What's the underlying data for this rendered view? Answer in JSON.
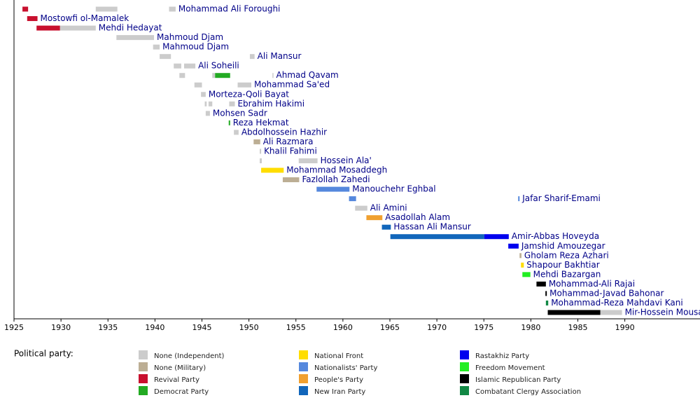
{
  "chart_data": {
    "type": "timeline",
    "xlim": [
      1925,
      1998
    ],
    "xticks": [
      1925,
      1930,
      1935,
      1940,
      1945,
      1950,
      1955,
      1960,
      1965,
      1970,
      1975,
      1980,
      1985,
      1990
    ],
    "legend_title": "Political party:",
    "series": [
      {
        "name": "None (Independent)",
        "color": "#cccccc"
      },
      {
        "name": "None (Military)",
        "color": "#bcae94"
      },
      {
        "name": "Revival Party",
        "color": "#c8102e"
      },
      {
        "name": "Democrat Party",
        "color": "#22aa22"
      },
      {
        "name": "National Front",
        "color": "#ffdd00"
      },
      {
        "name": "Nationalists' Party",
        "color": "#5588dd"
      },
      {
        "name": "People's Party",
        "color": "#f0a030"
      },
      {
        "name": "New Iran Party",
        "color": "#1166bb"
      },
      {
        "name": "Rastakhiz Party",
        "color": "#0000ee"
      },
      {
        "name": "Freedom Movement",
        "color": "#22ee22"
      },
      {
        "name": "Islamic Republican Party",
        "color": "#000000"
      },
      {
        "name": "Combatant Clergy Association",
        "color": "#118844"
      }
    ],
    "rows": [
      {
        "label": "Mohammad Ali Foroughi",
        "segments": [
          {
            "start": 1925.9,
            "end": 1926.5,
            "color": "#c8102e"
          },
          {
            "start": 1933.7,
            "end": 1936.0,
            "color": "#cccccc"
          },
          {
            "start": 1941.5,
            "end": 1942.2,
            "color": "#cccccc"
          }
        ]
      },
      {
        "label": "Mostowfi ol-Mamalek",
        "segments": [
          {
            "start": 1926.4,
            "end": 1927.5,
            "color": "#c8102e"
          }
        ]
      },
      {
        "label": "Mehdi Hedayat",
        "segments": [
          {
            "start": 1927.4,
            "end": 1929.9,
            "color": "#c8102e"
          },
          {
            "start": 1929.9,
            "end": 1933.7,
            "color": "#cccccc"
          }
        ]
      },
      {
        "label": "Mahmoud Djam",
        "segments": [
          {
            "start": 1935.9,
            "end": 1939.9,
            "color": "#cccccc"
          }
        ]
      },
      {
        "label": "Mahmoud Djam",
        "segments": [
          {
            "start": 1939.8,
            "end": 1940.5,
            "color": "#cccccc"
          }
        ]
      },
      {
        "label": "Ali Mansur",
        "segments": [
          {
            "start": 1940.5,
            "end": 1941.7,
            "color": "#cccccc"
          },
          {
            "start": 1950.1,
            "end": 1950.6,
            "color": "#cccccc"
          }
        ]
      },
      {
        "label": "Ali Soheili",
        "segments": [
          {
            "start": 1942.0,
            "end": 1942.8,
            "color": "#cccccc"
          },
          {
            "start": 1943.1,
            "end": 1944.3,
            "color": "#cccccc"
          }
        ]
      },
      {
        "label": "Ahmad Qavam",
        "segments": [
          {
            "start": 1942.6,
            "end": 1943.2,
            "color": "#cccccc"
          },
          {
            "start": 1946.1,
            "end": 1946.4,
            "color": "#cccccc"
          },
          {
            "start": 1946.4,
            "end": 1948.0,
            "color": "#22aa22"
          },
          {
            "start": 1952.5,
            "end": 1952.6,
            "color": "#cccccc"
          }
        ]
      },
      {
        "label": "Mohammad Sa'ed",
        "segments": [
          {
            "start": 1944.2,
            "end": 1945.0,
            "color": "#cccccc"
          },
          {
            "start": 1948.8,
            "end": 1950.25,
            "color": "#cccccc"
          }
        ]
      },
      {
        "label": "Morteza-Qoli Bayat",
        "segments": [
          {
            "start": 1944.9,
            "end": 1945.4,
            "color": "#cccccc"
          }
        ]
      },
      {
        "label": "Ebrahim Hakimi",
        "segments": [
          {
            "start": 1945.3,
            "end": 1945.5,
            "color": "#cccccc"
          },
          {
            "start": 1945.7,
            "end": 1946.1,
            "color": "#cccccc"
          },
          {
            "start": 1947.9,
            "end": 1948.5,
            "color": "#cccccc"
          }
        ]
      },
      {
        "label": "Mohsen Sadr",
        "segments": [
          {
            "start": 1945.4,
            "end": 1945.85,
            "color": "#cccccc"
          }
        ]
      },
      {
        "label": "Reza Hekmat",
        "segments": [
          {
            "start": 1947.85,
            "end": 1948.0,
            "color": "#22aa22"
          }
        ]
      },
      {
        "label": "Abdolhossein Hazhir",
        "segments": [
          {
            "start": 1948.4,
            "end": 1948.9,
            "color": "#cccccc"
          }
        ]
      },
      {
        "label": "Ali Razmara",
        "segments": [
          {
            "start": 1950.5,
            "end": 1951.2,
            "color": "#bcae94"
          }
        ]
      },
      {
        "label": "Khalil Fahimi",
        "segments": [
          {
            "start": 1951.15,
            "end": 1951.3,
            "color": "#cccccc"
          }
        ]
      },
      {
        "label": "Hossein Ala'",
        "segments": [
          {
            "start": 1951.15,
            "end": 1951.37,
            "color": "#cccccc"
          },
          {
            "start": 1955.3,
            "end": 1957.3,
            "color": "#cccccc"
          }
        ]
      },
      {
        "label": "Mohammad Mosaddegh",
        "segments": [
          {
            "start": 1951.3,
            "end": 1953.7,
            "color": "#ffdd00"
          }
        ]
      },
      {
        "label": "Fazlollah Zahedi",
        "segments": [
          {
            "start": 1953.6,
            "end": 1955.35,
            "color": "#bcae94"
          }
        ]
      },
      {
        "label": "Manouchehr Eghbal",
        "segments": [
          {
            "start": 1957.2,
            "end": 1960.7,
            "color": "#5588dd"
          }
        ]
      },
      {
        "label": "Jafar Sharif-Emami",
        "segments": [
          {
            "start": 1960.65,
            "end": 1961.4,
            "color": "#5588dd"
          },
          {
            "start": 1978.65,
            "end": 1978.8,
            "color": "#5588dd"
          }
        ]
      },
      {
        "label": "Ali Amini",
        "segments": [
          {
            "start": 1961.3,
            "end": 1962.6,
            "color": "#cccccc"
          }
        ]
      },
      {
        "label": "Asadollah Alam",
        "segments": [
          {
            "start": 1962.5,
            "end": 1964.2,
            "color": "#f0a030"
          }
        ]
      },
      {
        "label": "Hassan Ali Mansur",
        "segments": [
          {
            "start": 1964.15,
            "end": 1965.1,
            "color": "#1166bb"
          }
        ]
      },
      {
        "label": "Amir-Abbas Hoveyda",
        "segments": [
          {
            "start": 1965.05,
            "end": 1975.05,
            "color": "#1166bb"
          },
          {
            "start": 1975.05,
            "end": 1977.65,
            "color": "#0000ee"
          }
        ]
      },
      {
        "label": "Jamshid Amouzegar",
        "segments": [
          {
            "start": 1977.6,
            "end": 1978.7,
            "color": "#0000ee"
          }
        ]
      },
      {
        "label": "Gholam Reza Azhari",
        "segments": [
          {
            "start": 1978.8,
            "end": 1979.0,
            "color": "#bcae94"
          }
        ]
      },
      {
        "label": "Shapour Bakhtiar",
        "segments": [
          {
            "start": 1978.95,
            "end": 1979.25,
            "color": "#ffdd00"
          }
        ]
      },
      {
        "label": "Mehdi Bazargan",
        "segments": [
          {
            "start": 1979.1,
            "end": 1979.95,
            "color": "#22ee22"
          }
        ]
      },
      {
        "label": "Mohammad-Ali Rajai",
        "segments": [
          {
            "start": 1980.6,
            "end": 1981.6,
            "color": "#000000"
          }
        ]
      },
      {
        "label": "Mohammad-Javad Bahonar",
        "segments": [
          {
            "start": 1981.55,
            "end": 1981.7,
            "color": "#000000"
          }
        ]
      },
      {
        "label": "Mohammad-Reza Mahdavi Kani",
        "segments": [
          {
            "start": 1981.6,
            "end": 1981.85,
            "color": "#118844"
          }
        ]
      },
      {
        "label": "Mir-Hossein Mousavi",
        "segments": [
          {
            "start": 1981.8,
            "end": 1987.4,
            "color": "#000000"
          },
          {
            "start": 1987.4,
            "end": 1989.7,
            "color": "#cccccc"
          }
        ]
      }
    ]
  }
}
